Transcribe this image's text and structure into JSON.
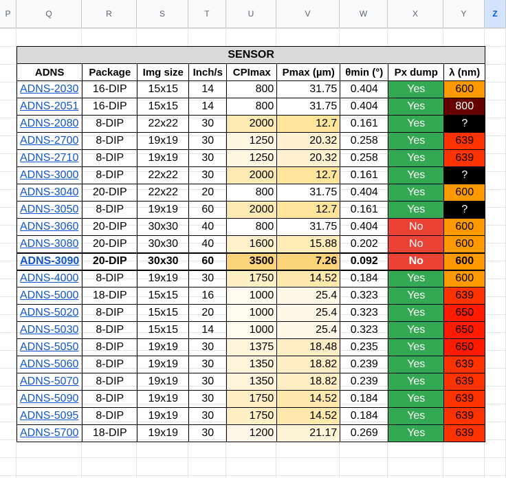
{
  "columns": [
    "P",
    "Q",
    "R",
    "S",
    "T",
    "U",
    "V",
    "W",
    "X",
    "Y",
    "Z"
  ],
  "selected_column": "Z",
  "table": {
    "title": "SENSOR",
    "headers": [
      "ADNS",
      "Package",
      "Img size",
      "Inch/s",
      "CPImax",
      "Pmax (µm)",
      "θmin (°)",
      "Px dump",
      "λ (nm)"
    ],
    "rows": [
      {
        "adns": "ADNS-2030",
        "package": "16-DIP",
        "img": "15x15",
        "ips": "14",
        "cpi": "800",
        "pmax": "31.75",
        "theta": "0.404",
        "px": "Yes",
        "wl": "600",
        "cpi_bg": "#ffffff",
        "pmax_bg": "#ffffff",
        "wl_bg": "#ff9900",
        "wl_fg": "#000000",
        "bold": false
      },
      {
        "adns": "ADNS-2051",
        "package": "16-DIP",
        "img": "15x15",
        "ips": "14",
        "cpi": "800",
        "pmax": "31.75",
        "theta": "0.404",
        "px": "Yes",
        "wl": "800",
        "cpi_bg": "#ffffff",
        "pmax_bg": "#ffffff",
        "wl_bg": "#660000",
        "wl_fg": "#ffffff",
        "bold": false
      },
      {
        "adns": "ADNS-2080",
        "package": "8-DIP",
        "img": "22x22",
        "ips": "30",
        "cpi": "2000",
        "pmax": "12.7",
        "theta": "0.161",
        "px": "Yes",
        "wl": "?",
        "cpi_bg": "#fde9b3",
        "pmax_bg": "#fee59b",
        "wl_bg": "#000000",
        "wl_fg": "#ffffff",
        "bold": false
      },
      {
        "adns": "ADNS-2700",
        "package": "8-DIP",
        "img": "19x19",
        "ips": "30",
        "cpi": "1250",
        "pmax": "20.32",
        "theta": "0.258",
        "px": "Yes",
        "wl": "639",
        "cpi_bg": "#fff7e2",
        "pmax_bg": "#fff1cf",
        "wl_bg": "#ff3300",
        "wl_fg": "#000000",
        "bold": false
      },
      {
        "adns": "ADNS-2710",
        "package": "8-DIP",
        "img": "19x19",
        "ips": "30",
        "cpi": "1250",
        "pmax": "20.32",
        "theta": "0.258",
        "px": "Yes",
        "wl": "639",
        "cpi_bg": "#fff7e2",
        "pmax_bg": "#fff1cf",
        "wl_bg": "#ff3300",
        "wl_fg": "#000000",
        "bold": false
      },
      {
        "adns": "ADNS-3000",
        "package": "8-DIP",
        "img": "22x22",
        "ips": "30",
        "cpi": "2000",
        "pmax": "12.7",
        "theta": "0.161",
        "px": "Yes",
        "wl": "?",
        "cpi_bg": "#fde9b3",
        "pmax_bg": "#fee59b",
        "wl_bg": "#000000",
        "wl_fg": "#ffffff",
        "bold": false
      },
      {
        "adns": "ADNS-3040",
        "package": "20-DIP",
        "img": "22x22",
        "ips": "20",
        "cpi": "800",
        "pmax": "31.75",
        "theta": "0.404",
        "px": "Yes",
        "wl": "600",
        "cpi_bg": "#ffffff",
        "pmax_bg": "#ffffff",
        "wl_bg": "#ff9900",
        "wl_fg": "#000000",
        "bold": false
      },
      {
        "adns": "ADNS-3050",
        "package": "8-DIP",
        "img": "19x19",
        "ips": "60",
        "cpi": "2000",
        "pmax": "12.7",
        "theta": "0.161",
        "px": "Yes",
        "wl": "?",
        "cpi_bg": "#fde9b3",
        "pmax_bg": "#fee59b",
        "wl_bg": "#000000",
        "wl_fg": "#ffffff",
        "bold": false
      },
      {
        "adns": "ADNS-3060",
        "package": "20-DIP",
        "img": "30x30",
        "ips": "40",
        "cpi": "800",
        "pmax": "31.75",
        "theta": "0.404",
        "px": "No",
        "wl": "600",
        "cpi_bg": "#ffffff",
        "pmax_bg": "#ffffff",
        "wl_bg": "#ff9900",
        "wl_fg": "#000000",
        "bold": false
      },
      {
        "adns": "ADNS-3080",
        "package": "20-DIP",
        "img": "30x30",
        "ips": "40",
        "cpi": "1600",
        "pmax": "15.88",
        "theta": "0.202",
        "px": "No",
        "wl": "600",
        "cpi_bg": "#fff0cc",
        "pmax_bg": "#ffebb6",
        "wl_bg": "#ff9900",
        "wl_fg": "#000000",
        "bold": false
      },
      {
        "adns": "ADNS-3090",
        "package": "20-DIP",
        "img": "30x30",
        "ips": "60",
        "cpi": "3500",
        "pmax": "7.26",
        "theta": "0.092",
        "px": "No",
        "wl": "600",
        "cpi_bg": "#fbd37a",
        "pmax_bg": "#fbd37a",
        "wl_bg": "#ff9900",
        "wl_fg": "#000000",
        "bold": true
      },
      {
        "adns": "ADNS-4000",
        "package": "8-DIP",
        "img": "19x19",
        "ips": "30",
        "cpi": "1750",
        "pmax": "14.52",
        "theta": "0.184",
        "px": "Yes",
        "wl": "600",
        "cpi_bg": "#ffefc4",
        "pmax_bg": "#fee8ab",
        "wl_bg": "#ff9900",
        "wl_fg": "#000000",
        "bold": false
      },
      {
        "adns": "ADNS-5000",
        "package": "18-DIP",
        "img": "15x15",
        "ips": "16",
        "cpi": "1000",
        "pmax": "25.4",
        "theta": "0.323",
        "px": "Yes",
        "wl": "639",
        "cpi_bg": "#fffbef",
        "pmax_bg": "#fff8e6",
        "wl_bg": "#ff3300",
        "wl_fg": "#000000",
        "bold": false
      },
      {
        "adns": "ADNS-5020",
        "package": "8-DIP",
        "img": "15x15",
        "ips": "20",
        "cpi": "1000",
        "pmax": "25.4",
        "theta": "0.323",
        "px": "Yes",
        "wl": "650",
        "cpi_bg": "#fffbef",
        "pmax_bg": "#fff8e6",
        "wl_bg": "#ff1a00",
        "wl_fg": "#000000",
        "bold": false
      },
      {
        "adns": "ADNS-5030",
        "package": "8-DIP",
        "img": "15x15",
        "ips": "14",
        "cpi": "1000",
        "pmax": "25.4",
        "theta": "0.323",
        "px": "Yes",
        "wl": "650",
        "cpi_bg": "#fffbef",
        "pmax_bg": "#fff8e6",
        "wl_bg": "#ff1a00",
        "wl_fg": "#000000",
        "bold": false
      },
      {
        "adns": "ADNS-5050",
        "package": "8-DIP",
        "img": "19x19",
        "ips": "30",
        "cpi": "1375",
        "pmax": "18.48",
        "theta": "0.235",
        "px": "Yes",
        "wl": "650",
        "cpi_bg": "#fff5da",
        "pmax_bg": "#ffeec4",
        "wl_bg": "#ff1a00",
        "wl_fg": "#000000",
        "bold": false
      },
      {
        "adns": "ADNS-5060",
        "package": "8-DIP",
        "img": "19x19",
        "ips": "30",
        "cpi": "1350",
        "pmax": "18.82",
        "theta": "0.239",
        "px": "Yes",
        "wl": "639",
        "cpi_bg": "#fff5da",
        "pmax_bg": "#ffeec4",
        "wl_bg": "#ff3300",
        "wl_fg": "#000000",
        "bold": false
      },
      {
        "adns": "ADNS-5070",
        "package": "8-DIP",
        "img": "19x19",
        "ips": "30",
        "cpi": "1350",
        "pmax": "18.82",
        "theta": "0.239",
        "px": "Yes",
        "wl": "639",
        "cpi_bg": "#fff5da",
        "pmax_bg": "#ffeec4",
        "wl_bg": "#ff3300",
        "wl_fg": "#000000",
        "bold": false
      },
      {
        "adns": "ADNS-5090",
        "package": "8-DIP",
        "img": "19x19",
        "ips": "30",
        "cpi": "1750",
        "pmax": "14.52",
        "theta": "0.184",
        "px": "Yes",
        "wl": "639",
        "cpi_bg": "#ffefc4",
        "pmax_bg": "#fee8ab",
        "wl_bg": "#ff3300",
        "wl_fg": "#000000",
        "bold": false
      },
      {
        "adns": "ADNS-5095",
        "package": "8-DIP",
        "img": "19x19",
        "ips": "30",
        "cpi": "1750",
        "pmax": "14.52",
        "theta": "0.184",
        "px": "Yes",
        "wl": "639",
        "cpi_bg": "#ffefc4",
        "pmax_bg": "#fee8ab",
        "wl_bg": "#ff3300",
        "wl_fg": "#000000",
        "bold": false
      },
      {
        "adns": "ADNS-5700",
        "package": "18-DIP",
        "img": "19x19",
        "ips": "30",
        "cpi": "1200",
        "pmax": "21.17",
        "theta": "0.269",
        "px": "Yes",
        "wl": "639",
        "cpi_bg": "#fff8e8",
        "pmax_bg": "#fff3d6",
        "wl_bg": "#ff3300",
        "wl_fg": "#000000",
        "bold": false
      }
    ]
  }
}
